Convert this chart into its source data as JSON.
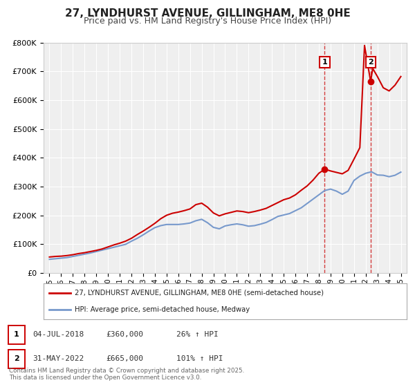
{
  "title": "27, LYNDHURST AVENUE, GILLINGHAM, ME8 0HE",
  "subtitle": "Price paid vs. HM Land Registry's House Price Index (HPI)",
  "title_fontsize": 11,
  "subtitle_fontsize": 9,
  "background_color": "#ffffff",
  "plot_bg_color": "#efefef",
  "grid_color": "#ffffff",
  "legend_label_red": "27, LYNDHURST AVENUE, GILLINGHAM, ME8 0HE (semi-detached house)",
  "legend_label_blue": "HPI: Average price, semi-detached house, Medway",
  "red_color": "#cc0000",
  "blue_color": "#7799cc",
  "marker1_date": 2018.5,
  "marker1_value": 360000,
  "marker1_label": "1",
  "marker2_date": 2022.42,
  "marker2_value": 665000,
  "marker2_label": "2",
  "footer": "Contains HM Land Registry data © Crown copyright and database right 2025.\nThis data is licensed under the Open Government Licence v3.0.",
  "ylim": [
    0,
    800000
  ],
  "yticks": [
    0,
    100000,
    200000,
    300000,
    400000,
    500000,
    600000,
    700000,
    800000
  ],
  "xlim": [
    1994.5,
    2025.5
  ],
  "red_x": [
    1995,
    1995.5,
    1996,
    1996.5,
    1997,
    1997.5,
    1998,
    1998.5,
    1999,
    1999.5,
    2000,
    2000.5,
    2001,
    2001.5,
    2002,
    2002.5,
    2003,
    2003.5,
    2004,
    2004.5,
    2005,
    2005.5,
    2006,
    2006.5,
    2007,
    2007.5,
    2008,
    2008.5,
    2009,
    2009.5,
    2010,
    2010.5,
    2011,
    2011.5,
    2012,
    2012.5,
    2013,
    2013.5,
    2014,
    2014.5,
    2015,
    2015.5,
    2016,
    2016.5,
    2017,
    2017.5,
    2018,
    2018.5,
    2019,
    2019.5,
    2020,
    2020.5,
    2021,
    2021.5,
    2021.9,
    2022.42,
    2022.6,
    2023,
    2023.5,
    2024,
    2024.5,
    2025
  ],
  "red_y": [
    55000,
    57000,
    58000,
    60000,
    63000,
    67000,
    70000,
    74000,
    78000,
    83000,
    90000,
    97000,
    103000,
    110000,
    120000,
    133000,
    145000,
    158000,
    172000,
    188000,
    200000,
    207000,
    211000,
    216000,
    222000,
    237000,
    242000,
    228000,
    208000,
    198000,
    205000,
    210000,
    215000,
    213000,
    209000,
    213000,
    218000,
    224000,
    234000,
    244000,
    254000,
    260000,
    271000,
    287000,
    302000,
    322000,
    346000,
    360000,
    354000,
    349000,
    344000,
    356000,
    395000,
    435000,
    790000,
    665000,
    710000,
    682000,
    643000,
    632000,
    652000,
    682000
  ],
  "blue_x": [
    1995,
    1995.5,
    1996,
    1996.5,
    1997,
    1997.5,
    1998,
    1998.5,
    1999,
    1999.5,
    2000,
    2000.5,
    2001,
    2001.5,
    2002,
    2002.5,
    2003,
    2003.5,
    2004,
    2004.5,
    2005,
    2005.5,
    2006,
    2006.5,
    2007,
    2007.5,
    2008,
    2008.5,
    2009,
    2009.5,
    2010,
    2010.5,
    2011,
    2011.5,
    2012,
    2012.5,
    2013,
    2013.5,
    2014,
    2014.5,
    2015,
    2015.5,
    2016,
    2016.5,
    2017,
    2017.5,
    2018,
    2018.5,
    2019,
    2019.5,
    2020,
    2020.5,
    2021,
    2021.5,
    2022,
    2022.5,
    2023,
    2023.5,
    2024,
    2024.5,
    2025
  ],
  "blue_y": [
    47000,
    49000,
    51000,
    53000,
    57000,
    61000,
    65000,
    69000,
    74000,
    79000,
    84000,
    89000,
    94000,
    99000,
    110000,
    120000,
    132000,
    145000,
    157000,
    164000,
    168000,
    168000,
    168000,
    170000,
    173000,
    181000,
    186000,
    174000,
    158000,
    153000,
    163000,
    167000,
    170000,
    167000,
    162000,
    164000,
    169000,
    175000,
    185000,
    196000,
    201000,
    206000,
    216000,
    226000,
    241000,
    256000,
    271000,
    286000,
    291000,
    284000,
    273000,
    284000,
    321000,
    336000,
    346000,
    351000,
    340000,
    339000,
    334000,
    339000,
    350000
  ]
}
